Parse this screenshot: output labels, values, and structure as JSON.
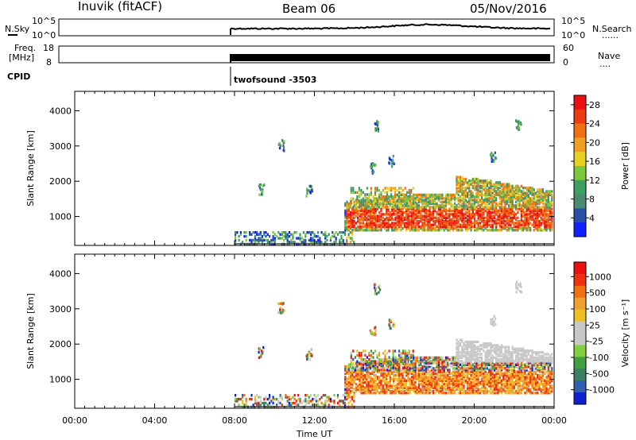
{
  "header": {
    "station": "Inuvik (fitACF)",
    "beam": "Beam 06",
    "date": "05/Nov/2016"
  },
  "top_panels": {
    "nsky_label": "N.Sky",
    "nsky_ticks": [
      "10^5",
      "10^0"
    ],
    "nsearch_label": "N.Search",
    "nsearch_ticks": [
      "10^5",
      "10^0"
    ],
    "freq_label_1": "Freq.",
    "freq_label_2": "[MHz]",
    "freq_ticks": [
      "18",
      "8"
    ],
    "nave_label": "Nave",
    "nave_ticks": [
      "60",
      "0"
    ],
    "cpid_label": "CPID",
    "cpid_value": "twofsound -3503",
    "dots": "......",
    "dots2": "...."
  },
  "chart_data": [
    {
      "type": "heatmap",
      "title": "",
      "xlabel": "Time UT",
      "ylabel": "Slant Range [km]",
      "x_ticks": [
        "00:00",
        "04:00",
        "08:00",
        "12:00",
        "16:00",
        "20:00",
        "00:00"
      ],
      "y_ticks": [
        "1000",
        "2000",
        "3000",
        "4000"
      ],
      "xlim": [
        0,
        24
      ],
      "ylim": [
        180,
        4550
      ],
      "colorbar": {
        "label": "Power [dB]",
        "ticks": [
          "4",
          "8",
          "12",
          "16",
          "20",
          "24",
          "28"
        ],
        "range": [
          0,
          30
        ]
      },
      "data_start_hour": 8
    },
    {
      "type": "heatmap",
      "title": "",
      "xlabel": "Time UT",
      "ylabel": "Slant Range [km]",
      "x_ticks": [
        "00:00",
        "04:00",
        "08:00",
        "12:00",
        "16:00",
        "20:00",
        "00:00"
      ],
      "y_ticks": [
        "1000",
        "2000",
        "3000",
        "4000"
      ],
      "xlim": [
        0,
        24
      ],
      "ylim": [
        180,
        4550
      ],
      "colorbar": {
        "label": "Velocity [m s⁻¹]",
        "ticks": [
          "1000",
          "500",
          "100",
          "25",
          "-25",
          "-100",
          "-500",
          "-1000"
        ],
        "range": [
          -1500,
          1500
        ]
      },
      "data_start_hour": 8
    }
  ],
  "colors": {
    "power_scale": [
      "#1020ff",
      "#2a4fa8",
      "#4a8a70",
      "#3da060",
      "#7cc83a",
      "#e8d020",
      "#f0a020",
      "#f07010",
      "#ef3a10",
      "#e81010"
    ],
    "velocity_scale": [
      "#1020d0",
      "#2f5fb0",
      "#3a8060",
      "#40a040",
      "#80d040",
      "#c8c8c8",
      "#c8c8c8",
      "#f0c020",
      "#f0a030",
      "#f07010",
      "#f03010",
      "#e81010"
    ]
  }
}
